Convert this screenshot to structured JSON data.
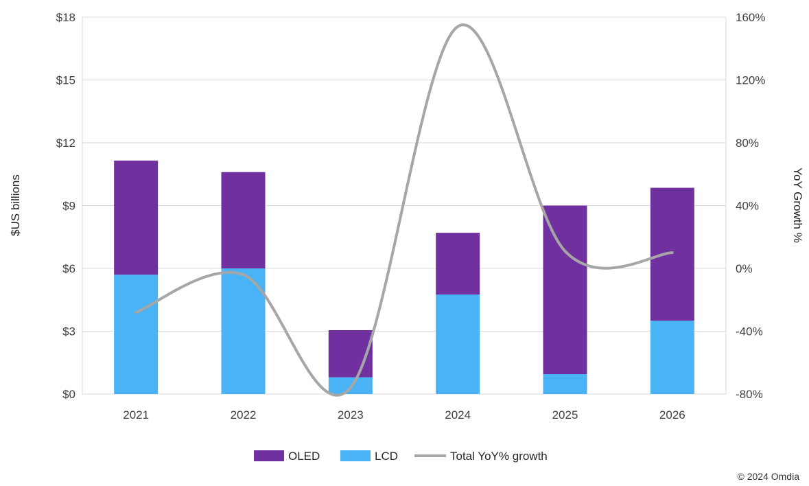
{
  "chart_data": {
    "type": "bar",
    "stacked": true,
    "categories": [
      "2021",
      "2022",
      "2023",
      "2024",
      "2025",
      "2026"
    ],
    "series": [
      {
        "name": "LCD",
        "values": [
          5.7,
          6.0,
          0.8,
          4.75,
          0.95,
          3.5
        ],
        "color": "#4AB3F6",
        "axis": "left"
      },
      {
        "name": "OLED",
        "values": [
          5.45,
          4.6,
          2.25,
          2.95,
          8.05,
          6.35
        ],
        "color": "#7030A0",
        "axis": "left"
      },
      {
        "name": "Total YoY% growth",
        "type": "line",
        "values": [
          -28,
          -4,
          -76,
          154,
          11,
          10
        ],
        "color": "#A6A6A6",
        "axis": "right"
      }
    ],
    "ylabel": "$US billions",
    "y2label": "YoY Growth %",
    "ylim": [
      0,
      18
    ],
    "y2lim": [
      -80,
      160
    ],
    "y_ticks": [
      "$0",
      "$3",
      "$6",
      "$9",
      "$12",
      "$15",
      "$18"
    ],
    "y2_ticks": [
      "-80%",
      "-40%",
      "0%",
      "40%",
      "80%",
      "120%",
      "160%"
    ],
    "legend": [
      "OLED",
      "LCD",
      "Total YoY% growth"
    ],
    "legend_position": "bottom",
    "grid": true
  },
  "credit": "© 2024 Omdia"
}
